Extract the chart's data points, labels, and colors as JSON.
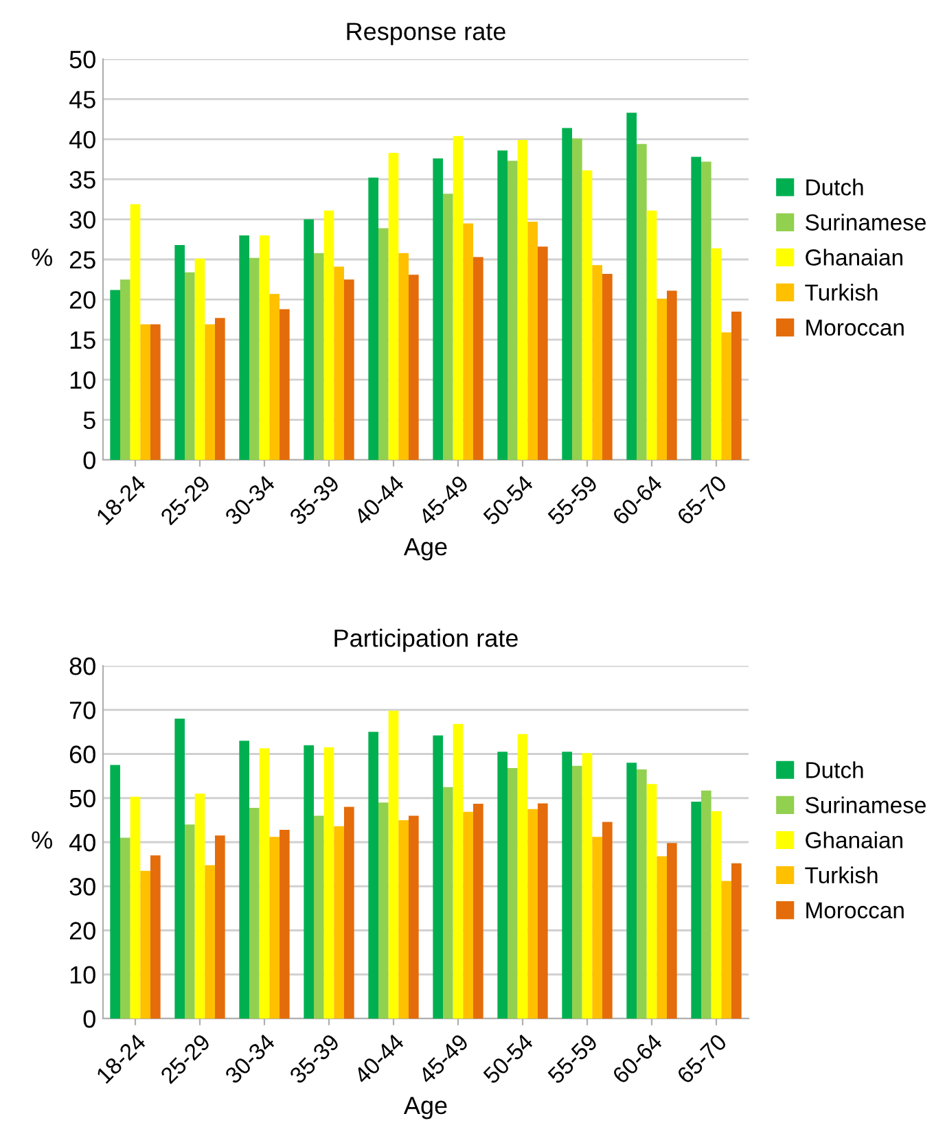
{
  "chart_data": [
    {
      "type": "bar",
      "title": "Response rate",
      "xlabel": "Age",
      "ylabel": "%",
      "categories": [
        "18-24",
        "25-29",
        "30-34",
        "35-39",
        "40-44",
        "45-49",
        "50-54",
        "55-59",
        "60-64",
        "65-70"
      ],
      "ylim": [
        0,
        50
      ],
      "yticks": [
        0,
        5,
        10,
        15,
        20,
        25,
        30,
        35,
        40,
        45,
        50
      ],
      "grid": "y",
      "legend": "right",
      "series": [
        {
          "name": "Dutch",
          "color": "#00b050",
          "values": [
            21.2,
            26.8,
            28.0,
            30.0,
            35.2,
            37.6,
            38.6,
            41.4,
            43.3,
            37.8
          ]
        },
        {
          "name": "Surinamese",
          "color": "#92d050",
          "values": [
            22.5,
            23.4,
            25.2,
            25.8,
            28.9,
            33.2,
            37.3,
            40.1,
            39.4,
            37.2
          ]
        },
        {
          "name": "Ghanaian",
          "color": "#ffff00",
          "values": [
            31.9,
            25.1,
            28.0,
            31.1,
            38.3,
            40.4,
            39.9,
            36.1,
            31.1,
            26.4
          ]
        },
        {
          "name": "Turkish",
          "color": "#ffc000",
          "values": [
            16.9,
            16.9,
            20.7,
            24.1,
            25.8,
            29.5,
            29.7,
            24.3,
            20.1,
            15.9
          ]
        },
        {
          "name": "Moroccan",
          "color": "#e46c0a",
          "values": [
            16.9,
            17.7,
            18.8,
            22.5,
            23.1,
            25.3,
            26.6,
            23.2,
            21.1,
            18.5
          ]
        }
      ]
    },
    {
      "type": "bar",
      "title": "Participation rate",
      "xlabel": "Age",
      "ylabel": "%",
      "categories": [
        "18-24",
        "25-29",
        "30-34",
        "35-39",
        "40-44",
        "45-49",
        "50-54",
        "55-59",
        "60-64",
        "65-70"
      ],
      "ylim": [
        0,
        80
      ],
      "yticks": [
        0,
        10,
        20,
        30,
        40,
        50,
        60,
        70,
        80
      ],
      "grid": "y",
      "legend": "right",
      "series": [
        {
          "name": "Dutch",
          "color": "#00b050",
          "values": [
            57.5,
            68.0,
            63.0,
            62.0,
            65.0,
            64.2,
            60.5,
            60.5,
            58.0,
            49.2
          ]
        },
        {
          "name": "Surinamese",
          "color": "#92d050",
          "values": [
            41.0,
            44.0,
            47.8,
            46.0,
            49.0,
            52.5,
            56.8,
            57.3,
            56.5,
            51.7
          ]
        },
        {
          "name": "Ghanaian",
          "color": "#ffff00",
          "values": [
            50.3,
            51.0,
            61.3,
            61.5,
            69.8,
            66.8,
            64.5,
            60.2,
            53.2,
            47.0
          ]
        },
        {
          "name": "Turkish",
          "color": "#ffc000",
          "values": [
            33.5,
            34.8,
            41.2,
            43.6,
            45.0,
            46.9,
            47.5,
            41.2,
            36.8,
            31.2
          ]
        },
        {
          "name": "Moroccan",
          "color": "#e46c0a",
          "values": [
            37.0,
            41.5,
            42.8,
            48.0,
            46.0,
            48.7,
            48.8,
            44.6,
            39.8,
            35.2
          ]
        }
      ]
    }
  ]
}
